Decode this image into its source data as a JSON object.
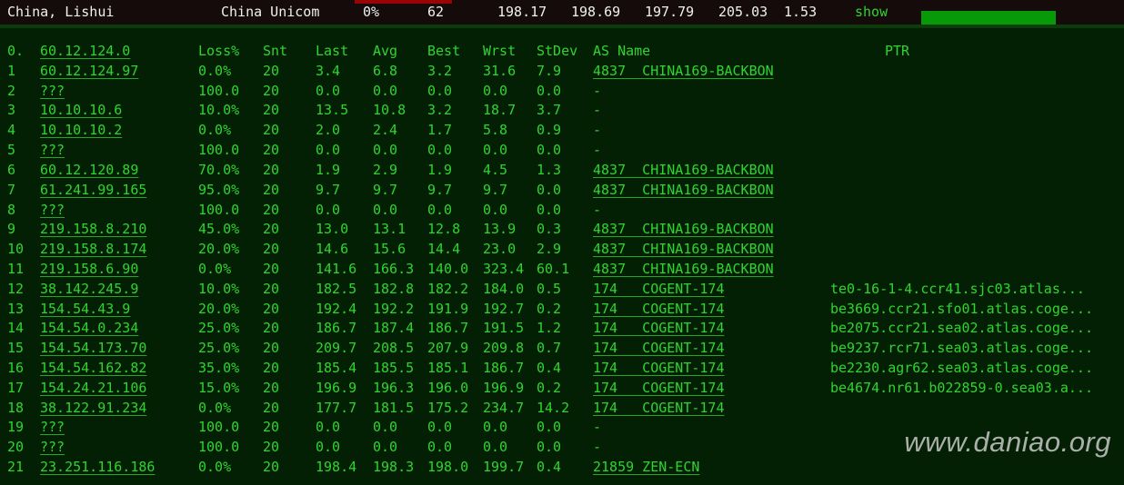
{
  "header": {
    "location": "China, Lishui",
    "isp": "China Unicom",
    "loss": "0%",
    "snt": "62",
    "last": "198.17",
    "avg": "198.69",
    "best": "197.79",
    "wrst": "205.03",
    "stdev": "1.53",
    "show_label": "show"
  },
  "table": {
    "source_hop": "0.",
    "source_ip": "60.12.124.0",
    "columns": [
      "Loss%",
      "Snt",
      "Last",
      "Avg",
      "Best",
      "Wrst",
      "StDev",
      "AS Name",
      "PTR"
    ],
    "rows": [
      {
        "hop": "1",
        "ip": "60.12.124.97",
        "loss": "0.0%",
        "snt": "20",
        "last": "3.4",
        "avg": "6.8",
        "best": "3.2",
        "wrst": "31.6",
        "stdev": "7.9",
        "asname": "4837  CHINA169-BACKBON",
        "ptr": ""
      },
      {
        "hop": "2",
        "ip": "???",
        "loss": "100.0",
        "snt": "20",
        "last": "0.0",
        "avg": "0.0",
        "best": "0.0",
        "wrst": "0.0",
        "stdev": "0.0",
        "asname": "-",
        "ptr": ""
      },
      {
        "hop": "3",
        "ip": "10.10.10.6",
        "loss": "10.0%",
        "snt": "20",
        "last": "13.5",
        "avg": "10.8",
        "best": "3.2",
        "wrst": "18.7",
        "stdev": "3.7",
        "asname": "-",
        "ptr": ""
      },
      {
        "hop": "4",
        "ip": "10.10.10.2",
        "loss": "0.0%",
        "snt": "20",
        "last": "2.0",
        "avg": "2.4",
        "best": "1.7",
        "wrst": "5.8",
        "stdev": "0.9",
        "asname": "-",
        "ptr": ""
      },
      {
        "hop": "5",
        "ip": "???",
        "loss": "100.0",
        "snt": "20",
        "last": "0.0",
        "avg": "0.0",
        "best": "0.0",
        "wrst": "0.0",
        "stdev": "0.0",
        "asname": "-",
        "ptr": ""
      },
      {
        "hop": "6",
        "ip": "60.12.120.89",
        "loss": "70.0%",
        "snt": "20",
        "last": "1.9",
        "avg": "2.9",
        "best": "1.9",
        "wrst": "4.5",
        "stdev": "1.3",
        "asname": "4837  CHINA169-BACKBON",
        "ptr": ""
      },
      {
        "hop": "7",
        "ip": "61.241.99.165",
        "loss": "95.0%",
        "snt": "20",
        "last": "9.7",
        "avg": "9.7",
        "best": "9.7",
        "wrst": "9.7",
        "stdev": "0.0",
        "asname": "4837  CHINA169-BACKBON",
        "ptr": ""
      },
      {
        "hop": "8",
        "ip": "???",
        "loss": "100.0",
        "snt": "20",
        "last": "0.0",
        "avg": "0.0",
        "best": "0.0",
        "wrst": "0.0",
        "stdev": "0.0",
        "asname": "-",
        "ptr": ""
      },
      {
        "hop": "9",
        "ip": "219.158.8.210",
        "loss": "45.0%",
        "snt": "20",
        "last": "13.0",
        "avg": "13.1",
        "best": "12.8",
        "wrst": "13.9",
        "stdev": "0.3",
        "asname": "4837  CHINA169-BACKBON",
        "ptr": ""
      },
      {
        "hop": "10",
        "ip": "219.158.8.174",
        "loss": "20.0%",
        "snt": "20",
        "last": "14.6",
        "avg": "15.6",
        "best": "14.4",
        "wrst": "23.0",
        "stdev": "2.9",
        "asname": "4837  CHINA169-BACKBON",
        "ptr": ""
      },
      {
        "hop": "11",
        "ip": "219.158.6.90",
        "loss": "0.0%",
        "snt": "20",
        "last": "141.6",
        "avg": "166.3",
        "best": "140.0",
        "wrst": "323.4",
        "stdev": "60.1",
        "asname": "4837  CHINA169-BACKBON",
        "ptr": ""
      },
      {
        "hop": "12",
        "ip": "38.142.245.9",
        "loss": "10.0%",
        "snt": "20",
        "last": "182.5",
        "avg": "182.8",
        "best": "182.2",
        "wrst": "184.0",
        "stdev": "0.5",
        "asname": "174   COGENT-174",
        "ptr": "te0-16-1-4.ccr41.sjc03.atlas..."
      },
      {
        "hop": "13",
        "ip": "154.54.43.9",
        "loss": "20.0%",
        "snt": "20",
        "last": "192.4",
        "avg": "192.2",
        "best": "191.9",
        "wrst": "192.7",
        "stdev": "0.2",
        "asname": "174   COGENT-174",
        "ptr": "be3669.ccr21.sfo01.atlas.coge..."
      },
      {
        "hop": "14",
        "ip": "154.54.0.234",
        "loss": "25.0%",
        "snt": "20",
        "last": "186.7",
        "avg": "187.4",
        "best": "186.7",
        "wrst": "191.5",
        "stdev": "1.2",
        "asname": "174   COGENT-174",
        "ptr": "be2075.ccr21.sea02.atlas.coge..."
      },
      {
        "hop": "15",
        "ip": "154.54.173.70",
        "loss": "25.0%",
        "snt": "20",
        "last": "209.7",
        "avg": "208.5",
        "best": "207.9",
        "wrst": "209.8",
        "stdev": "0.7",
        "asname": "174   COGENT-174",
        "ptr": "be9237.rcr71.sea03.atlas.coge..."
      },
      {
        "hop": "16",
        "ip": "154.54.162.82",
        "loss": "35.0%",
        "snt": "20",
        "last": "185.4",
        "avg": "185.5",
        "best": "185.1",
        "wrst": "186.7",
        "stdev": "0.4",
        "asname": "174   COGENT-174",
        "ptr": "be2230.agr62.sea03.atlas.coge..."
      },
      {
        "hop": "17",
        "ip": "154.24.21.106",
        "loss": "15.0%",
        "snt": "20",
        "last": "196.9",
        "avg": "196.3",
        "best": "196.0",
        "wrst": "196.9",
        "stdev": "0.2",
        "asname": "174   COGENT-174",
        "ptr": "be4674.nr61.b022859-0.sea03.a..."
      },
      {
        "hop": "18",
        "ip": "38.122.91.234",
        "loss": "0.0%",
        "snt": "20",
        "last": "177.7",
        "avg": "181.5",
        "best": "175.2",
        "wrst": "234.7",
        "stdev": "14.2",
        "asname": "174   COGENT-174",
        "ptr": ""
      },
      {
        "hop": "19",
        "ip": "???",
        "loss": "100.0",
        "snt": "20",
        "last": "0.0",
        "avg": "0.0",
        "best": "0.0",
        "wrst": "0.0",
        "stdev": "0.0",
        "asname": "-",
        "ptr": ""
      },
      {
        "hop": "20",
        "ip": "???",
        "loss": "100.0",
        "snt": "20",
        "last": "0.0",
        "avg": "0.0",
        "best": "0.0",
        "wrst": "0.0",
        "stdev": "0.0",
        "asname": "-",
        "ptr": ""
      },
      {
        "hop": "21",
        "ip": "23.251.116.186",
        "loss": "0.0%",
        "snt": "20",
        "last": "198.4",
        "avg": "198.3",
        "best": "198.0",
        "wrst": "199.7",
        "stdev": "0.4",
        "asname": "21859 ZEN-ECN",
        "ptr": ""
      }
    ]
  },
  "watermark": "www.daniao.org",
  "colors": {
    "background": "#042004",
    "text_green": "#30d430",
    "topbar_bg": "#150b0b",
    "topbar_text": "#f0f0f0",
    "loss_bar_red": "#9b0404",
    "progress_green": "#079907",
    "separator_green": "#0c3b0c",
    "watermark_gray": "#d0d0d0"
  }
}
